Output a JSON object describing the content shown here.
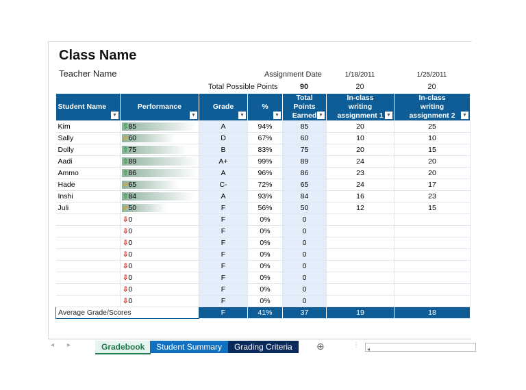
{
  "title": "Class Name",
  "teacher": "Teacher Name",
  "assignment_date_label": "Assignment Date",
  "total_possible_label": "Total Possible Points",
  "total_possible": "90",
  "dates": [
    "1/18/2011",
    "1/25/2011"
  ],
  "possible": [
    "20",
    "20"
  ],
  "headers": [
    "Student Name",
    "Performance",
    "Grade",
    "%",
    "Total Points Earned",
    "In-class writing assignment 1",
    "In-class writing assignment 2"
  ],
  "rows": [
    {
      "name": "Kim",
      "perf": 85,
      "icon": "up-arrow",
      "grade": "A",
      "pct": "94%",
      "total": "85",
      "a1": "20",
      "a2": "25"
    },
    {
      "name": "Sally",
      "perf": 60,
      "icon": "diagonal-arrow",
      "grade": "D",
      "pct": "67%",
      "total": "60",
      "a1": "10",
      "a2": "10"
    },
    {
      "name": "Dolly",
      "perf": 75,
      "icon": "up-arrow",
      "grade": "B",
      "pct": "83%",
      "total": "75",
      "a1": "20",
      "a2": "15"
    },
    {
      "name": "Aadi",
      "perf": 89,
      "icon": "up-arrow",
      "grade": "A+",
      "pct": "99%",
      "total": "89",
      "a1": "24",
      "a2": "20"
    },
    {
      "name": "Ammo",
      "perf": 86,
      "icon": "up-arrow",
      "grade": "A",
      "pct": "96%",
      "total": "86",
      "a1": "23",
      "a2": "20"
    },
    {
      "name": "Hade",
      "perf": 65,
      "icon": "diagonal-arrow",
      "grade": "C-",
      "pct": "72%",
      "total": "65",
      "a1": "24",
      "a2": "17"
    },
    {
      "name": "Inshi",
      "perf": 84,
      "icon": "up-arrow",
      "grade": "A",
      "pct": "93%",
      "total": "84",
      "a1": "16",
      "a2": "23"
    },
    {
      "name": "Juli",
      "perf": 50,
      "icon": "diagonal-arrow",
      "grade": "F",
      "pct": "56%",
      "total": "50",
      "a1": "12",
      "a2": "15"
    },
    {
      "name": "",
      "perf": 0,
      "icon": "down-arrow",
      "grade": "F",
      "pct": "0%",
      "total": "0",
      "a1": "",
      "a2": ""
    },
    {
      "name": "",
      "perf": 0,
      "icon": "down-arrow",
      "grade": "F",
      "pct": "0%",
      "total": "0",
      "a1": "",
      "a2": ""
    },
    {
      "name": "",
      "perf": 0,
      "icon": "down-arrow",
      "grade": "F",
      "pct": "0%",
      "total": "0",
      "a1": "",
      "a2": ""
    },
    {
      "name": "",
      "perf": 0,
      "icon": "down-arrow",
      "grade": "F",
      "pct": "0%",
      "total": "0",
      "a1": "",
      "a2": ""
    },
    {
      "name": "",
      "perf": 0,
      "icon": "down-arrow",
      "grade": "F",
      "pct": "0%",
      "total": "0",
      "a1": "",
      "a2": ""
    },
    {
      "name": "",
      "perf": 0,
      "icon": "down-arrow",
      "grade": "F",
      "pct": "0%",
      "total": "0",
      "a1": "",
      "a2": ""
    },
    {
      "name": "",
      "perf": 0,
      "icon": "down-arrow",
      "grade": "F",
      "pct": "0%",
      "total": "0",
      "a1": "",
      "a2": ""
    },
    {
      "name": "",
      "perf": 0,
      "icon": "down-arrow",
      "grade": "F",
      "pct": "0%",
      "total": "0",
      "a1": "",
      "a2": ""
    }
  ],
  "average": {
    "label": "Average Grade/Scores",
    "grade": "F",
    "pct": "41%",
    "total": "37",
    "a1": "19",
    "a2": "18"
  },
  "tabs": [
    {
      "label": "Gradebook",
      "active": true,
      "color": "#e6f4ef"
    },
    {
      "label": "Student Summary",
      "color": "#1170c0"
    },
    {
      "label": "Grading Criteria",
      "color": "#0b2a5c"
    }
  ],
  "colors": {
    "header": "#0e5d96",
    "up": "#3a9a4a",
    "diag": "#e0a020",
    "down": "#c0302a"
  }
}
